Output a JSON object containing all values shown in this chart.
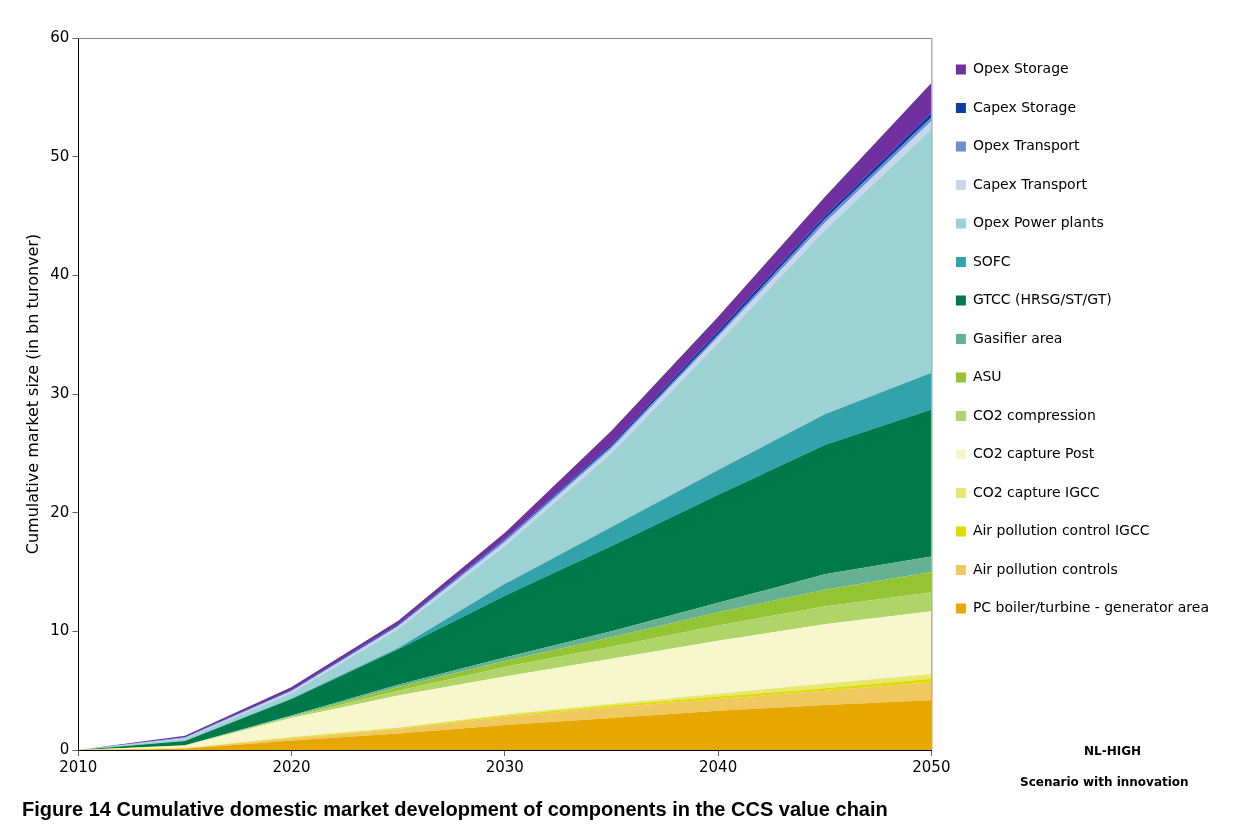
{
  "chart_data": {
    "type": "area",
    "title": "Figure 14 Cumulative domestic market development of components in the CCS value chain",
    "ylabel": "Cumulative market size (in bn turonver)",
    "stacked": true,
    "legend": "right",
    "x": [
      2010,
      2015,
      2020,
      2025,
      2030,
      2035,
      2040,
      2045,
      2050
    ],
    "xlim": [
      2010,
      2050
    ],
    "xticks": [
      2010,
      2020,
      2030,
      2040,
      2050
    ],
    "ylim": [
      0,
      60
    ],
    "yticks": [
      0,
      10,
      20,
      30,
      40,
      50,
      60
    ],
    "series": [
      {
        "name": "PC boiler/turbine - generator area",
        "color": "#e6a800",
        "values": [
          0,
          0.1,
          0.8,
          1.4,
          2.1,
          2.7,
          3.3,
          3.8,
          4.2
        ]
      },
      {
        "name": "Air pollution controls",
        "color": "#f0c860",
        "values": [
          0,
          0.05,
          0.2,
          0.4,
          0.7,
          0.9,
          1.0,
          1.2,
          1.5
        ]
      },
      {
        "name": "Air pollution control IGCC",
        "color": "#dcdc00",
        "values": [
          0,
          0.01,
          0.05,
          0.05,
          0.1,
          0.15,
          0.2,
          0.2,
          0.3
        ]
      },
      {
        "name": "CO2 capture IGCC",
        "color": "#e8e870",
        "values": [
          0,
          0.01,
          0.05,
          0.05,
          0.1,
          0.15,
          0.25,
          0.4,
          0.4
        ]
      },
      {
        "name": "CO2 capture Post",
        "color": "#f8f6cc",
        "values": [
          0,
          0.18,
          1.6,
          2.7,
          3.2,
          3.8,
          4.45,
          5.0,
          5.3
        ]
      },
      {
        "name": "CO2 compression",
        "color": "#b0d46a",
        "values": [
          0,
          0.02,
          0.1,
          0.4,
          0.8,
          1.0,
          1.3,
          1.5,
          1.6
        ]
      },
      {
        "name": "ASU",
        "color": "#94c434",
        "values": [
          0,
          0.02,
          0.05,
          0.3,
          0.5,
          0.8,
          1.1,
          1.4,
          1.7
        ]
      },
      {
        "name": "Gasifier area",
        "color": "#66b094",
        "values": [
          0,
          0.01,
          0.05,
          0.2,
          0.3,
          0.5,
          0.8,
          1.3,
          1.3
        ]
      },
      {
        "name": "GTCC (HRSG/ST/GT)",
        "color": "#007a4a",
        "values": [
          0,
          0.35,
          1.4,
          3.0,
          5.2,
          7.2,
          9.1,
          10.9,
          12.4
        ]
      },
      {
        "name": "SOFC",
        "color": "#33a3ab",
        "values": [
          0,
          0.01,
          0.05,
          0.1,
          1.0,
          1.6,
          2.1,
          2.6,
          3.1
        ]
      },
      {
        "name": "Opex Power plants",
        "color": "#9dd2d4",
        "values": [
          0,
          0.19,
          0.45,
          1.6,
          3.2,
          6.2,
          10.7,
          15.5,
          20.5
        ]
      },
      {
        "name": "Capex Transport",
        "color": "#c6d6ec",
        "values": [
          0,
          0.05,
          0.15,
          0.2,
          0.3,
          0.4,
          0.5,
          0.6,
          0.7
        ]
      },
      {
        "name": "Opex Transport",
        "color": "#6d8ecb",
        "values": [
          0,
          0.05,
          0.05,
          0.1,
          0.2,
          0.2,
          0.2,
          0.3,
          0.3
        ]
      },
      {
        "name": "Capex Storage",
        "color": "#0d3ea3",
        "values": [
          0,
          0.03,
          0.05,
          0.1,
          0.1,
          0.2,
          0.3,
          0.3,
          0.4
        ]
      },
      {
        "name": "Opex Storage",
        "color": "#7030a0",
        "values": [
          0,
          0.12,
          0.25,
          0.3,
          0.5,
          1.1,
          1.2,
          1.6,
          2.5
        ]
      }
    ],
    "annotations": [
      "NL-HIGH",
      "Scenario with innovation"
    ]
  }
}
